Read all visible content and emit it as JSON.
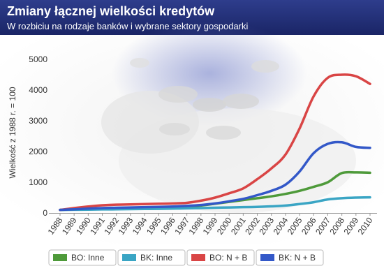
{
  "chart_data": {
    "type": "line",
    "title": "Zmiany łącznej wielkości kredytów",
    "subtitle": "W rozbiciu na rodzaje banków i wybrane sektory gospodarki",
    "ylabel": "Wielkość z 1988 r. = 100",
    "xlabel": "",
    "ylim": [
      0,
      5000
    ],
    "yticks": [
      0,
      1000,
      2000,
      3000,
      4000,
      5000
    ],
    "x": [
      1988,
      1989,
      1990,
      1991,
      1992,
      1993,
      1994,
      1995,
      1996,
      1997,
      1998,
      1999,
      2000,
      2001,
      2002,
      2003,
      2004,
      2005,
      2006,
      2007,
      2008,
      2009,
      2010
    ],
    "grid": false,
    "legend_position": "bottom",
    "series": [
      {
        "name": "BO: Inne",
        "color": "#4e9a3a",
        "values": [
          100,
          115,
          130,
          145,
          155,
          165,
          175,
          185,
          195,
          210,
          240,
          300,
          360,
          420,
          480,
          540,
          620,
          720,
          850,
          1000,
          1300,
          1320,
          1310
        ]
      },
      {
        "name": "BK: Inne",
        "color": "#3aa5c4",
        "values": [
          100,
          105,
          110,
          115,
          120,
          125,
          130,
          135,
          140,
          150,
          160,
          170,
          180,
          190,
          200,
          215,
          240,
          290,
          350,
          440,
          480,
          500,
          510
        ]
      },
      {
        "name": "BO: N + B",
        "color": "#d94545",
        "values": [
          100,
          160,
          210,
          250,
          270,
          280,
          290,
          300,
          310,
          330,
          400,
          500,
          640,
          800,
          1100,
          1450,
          1900,
          2750,
          3800,
          4400,
          4500,
          4450,
          4200
        ]
      },
      {
        "name": "BK: N + B",
        "color": "#3358c8",
        "values": [
          100,
          120,
          140,
          160,
          170,
          180,
          190,
          200,
          210,
          230,
          260,
          310,
          380,
          460,
          580,
          720,
          920,
          1350,
          1950,
          2250,
          2300,
          2150,
          2120
        ]
      }
    ]
  }
}
